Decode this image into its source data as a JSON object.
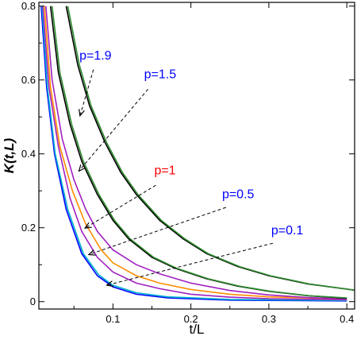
{
  "chart_data": {
    "type": "line",
    "xlabel": "t/L",
    "ylabel": "K(t,L)",
    "xlim": [
      0.005,
      0.41
    ],
    "ylim": [
      -0.02,
      0.81
    ],
    "x_ticks": [
      0.1,
      0.2,
      0.3,
      0.4
    ],
    "x_tick_labels": [
      "0.1",
      "0.2",
      "0.3",
      "0.4"
    ],
    "y_ticks": [
      0,
      0.2,
      0.4,
      0.6,
      0.8
    ],
    "y_tick_labels": [
      "0",
      "0.2",
      "0.4",
      "0.6",
      "0.8"
    ],
    "grid": false,
    "colors": {
      "blue": "#0000ff",
      "red": "#ff0000",
      "green": "#2e8b2e",
      "black": "#000000",
      "magenta": "#a020c0",
      "orange": "#ff8c00",
      "cyan": "#00b0d0"
    },
    "series": [
      {
        "color": "#0000ff",
        "points": [
          [
            0.008,
            0.8
          ],
          [
            0.015,
            0.58
          ],
          [
            0.025,
            0.4
          ],
          [
            0.04,
            0.25
          ],
          [
            0.06,
            0.13
          ],
          [
            0.08,
            0.07
          ],
          [
            0.1,
            0.04
          ],
          [
            0.13,
            0.02
          ],
          [
            0.17,
            0.01
          ],
          [
            0.25,
            0.004
          ],
          [
            0.4,
            0.002
          ]
        ]
      },
      {
        "color": "#00b0d0",
        "points": [
          [
            0.009,
            0.8
          ],
          [
            0.016,
            0.58
          ],
          [
            0.026,
            0.4
          ],
          [
            0.042,
            0.25
          ],
          [
            0.062,
            0.13
          ],
          [
            0.082,
            0.072
          ],
          [
            0.1,
            0.044
          ],
          [
            0.13,
            0.024
          ],
          [
            0.17,
            0.013
          ],
          [
            0.25,
            0.006
          ],
          [
            0.4,
            0.003
          ]
        ]
      },
      {
        "color": "#a020c0",
        "points": [
          [
            0.01,
            0.8
          ],
          [
            0.018,
            0.58
          ],
          [
            0.03,
            0.42
          ],
          [
            0.045,
            0.28
          ],
          [
            0.06,
            0.19
          ],
          [
            0.08,
            0.12
          ],
          [
            0.1,
            0.08
          ],
          [
            0.13,
            0.05
          ],
          [
            0.16,
            0.035
          ],
          [
            0.2,
            0.02
          ],
          [
            0.25,
            0.012
          ],
          [
            0.3,
            0.008
          ],
          [
            0.4,
            0.005
          ]
        ]
      },
      {
        "color": "#ff8c00",
        "points": [
          [
            0.012,
            0.8
          ],
          [
            0.02,
            0.58
          ],
          [
            0.032,
            0.42
          ],
          [
            0.048,
            0.3
          ],
          [
            0.065,
            0.21
          ],
          [
            0.085,
            0.14
          ],
          [
            0.1,
            0.105
          ],
          [
            0.13,
            0.07
          ],
          [
            0.16,
            0.05
          ],
          [
            0.2,
            0.033
          ],
          [
            0.25,
            0.02
          ],
          [
            0.3,
            0.013
          ],
          [
            0.4,
            0.007
          ]
        ]
      },
      {
        "color": "#a020c0",
        "points": [
          [
            0.014,
            0.8
          ],
          [
            0.022,
            0.6
          ],
          [
            0.035,
            0.44
          ],
          [
            0.05,
            0.33
          ],
          [
            0.065,
            0.25
          ],
          [
            0.08,
            0.19
          ],
          [
            0.1,
            0.14
          ],
          [
            0.13,
            0.1
          ],
          [
            0.16,
            0.075
          ],
          [
            0.2,
            0.05
          ],
          [
            0.25,
            0.03
          ],
          [
            0.3,
            0.018
          ],
          [
            0.35,
            0.011
          ],
          [
            0.4,
            0.007
          ]
        ]
      },
      {
        "color": "#000000",
        "points": [
          [
            0.02,
            0.8
          ],
          [
            0.03,
            0.62
          ],
          [
            0.045,
            0.48
          ],
          [
            0.06,
            0.38
          ],
          [
            0.08,
            0.29
          ],
          [
            0.1,
            0.22
          ],
          [
            0.12,
            0.17
          ],
          [
            0.15,
            0.12
          ],
          [
            0.18,
            0.09
          ],
          [
            0.22,
            0.062
          ],
          [
            0.26,
            0.042
          ],
          [
            0.3,
            0.028
          ],
          [
            0.35,
            0.016
          ],
          [
            0.4,
            0.009
          ]
        ]
      },
      {
        "color": "#2e8b2e",
        "points": [
          [
            0.022,
            0.8
          ],
          [
            0.032,
            0.62
          ],
          [
            0.047,
            0.48
          ],
          [
            0.062,
            0.38
          ],
          [
            0.082,
            0.29
          ],
          [
            0.102,
            0.22
          ],
          [
            0.122,
            0.17
          ],
          [
            0.152,
            0.12
          ],
          [
            0.182,
            0.09
          ],
          [
            0.222,
            0.062
          ],
          [
            0.262,
            0.042
          ],
          [
            0.302,
            0.028
          ],
          [
            0.352,
            0.016
          ],
          [
            0.4,
            0.01
          ]
        ]
      },
      {
        "color": "#000000",
        "points": [
          [
            0.04,
            0.8
          ],
          [
            0.055,
            0.64
          ],
          [
            0.07,
            0.53
          ],
          [
            0.09,
            0.43
          ],
          [
            0.11,
            0.35
          ],
          [
            0.13,
            0.29
          ],
          [
            0.16,
            0.22
          ],
          [
            0.19,
            0.17
          ],
          [
            0.22,
            0.13
          ],
          [
            0.26,
            0.095
          ],
          [
            0.3,
            0.07
          ],
          [
            0.35,
            0.048
          ],
          [
            0.4,
            0.034
          ],
          [
            0.41,
            0.031
          ]
        ]
      },
      {
        "color": "#2e8b2e",
        "points": [
          [
            0.042,
            0.8
          ],
          [
            0.057,
            0.64
          ],
          [
            0.072,
            0.53
          ],
          [
            0.092,
            0.43
          ],
          [
            0.112,
            0.35
          ],
          [
            0.132,
            0.29
          ],
          [
            0.162,
            0.22
          ],
          [
            0.192,
            0.17
          ],
          [
            0.222,
            0.13
          ],
          [
            0.262,
            0.095
          ],
          [
            0.302,
            0.07
          ],
          [
            0.352,
            0.048
          ],
          [
            0.4,
            0.034
          ],
          [
            0.41,
            0.031
          ]
        ]
      }
    ],
    "annotations": [
      {
        "text": "p=1.9",
        "color": "#0000ff",
        "text_at": [
          0.057,
          0.655
        ],
        "arrow_from": [
          0.075,
          0.628
        ],
        "arrow_to": [
          0.058,
          0.505
        ]
      },
      {
        "text": "p=1.5",
        "color": "#0000ff",
        "text_at": [
          0.14,
          0.605
        ],
        "arrow_from": [
          0.145,
          0.575
        ],
        "arrow_to": [
          0.057,
          0.355
        ]
      },
      {
        "text": "p=1",
        "color": "#ff0000",
        "text_at": [
          0.153,
          0.345
        ],
        "arrow_from": [
          0.155,
          0.315
        ],
        "arrow_to": [
          0.065,
          0.2
        ]
      },
      {
        "text": "p=0.5",
        "color": "#0000ff",
        "text_at": [
          0.24,
          0.28
        ],
        "arrow_from": [
          0.245,
          0.255
        ],
        "arrow_to": [
          0.07,
          0.128
        ]
      },
      {
        "text": "p=0.1",
        "color": "#0000ff",
        "text_at": [
          0.303,
          0.182
        ],
        "arrow_from": [
          0.305,
          0.158
        ],
        "arrow_to": [
          0.093,
          0.045
        ]
      }
    ]
  }
}
